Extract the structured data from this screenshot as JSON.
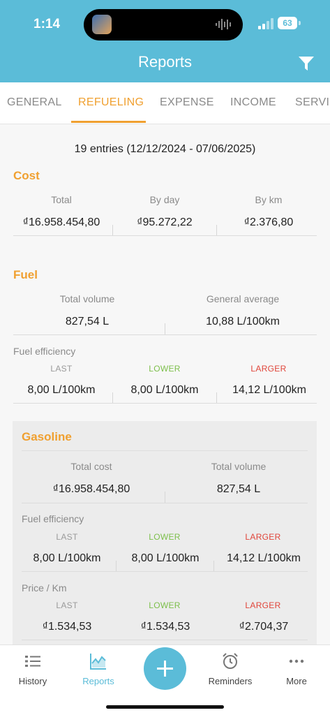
{
  "status_bar": {
    "time": "1:14",
    "battery": "63"
  },
  "header": {
    "title": "Reports"
  },
  "tabs": [
    {
      "label": "GENERAL"
    },
    {
      "label": "REFUELING"
    },
    {
      "label": "EXPENSE"
    },
    {
      "label": "INCOME"
    },
    {
      "label": "SERVIC"
    }
  ],
  "summary": {
    "entries": "19 entries (12/12/2024 - 07/06/2025)"
  },
  "cost": {
    "title": "Cost",
    "total_label": "Total",
    "total_value": "₫16.958.454,80",
    "by_day_label": "By day",
    "by_day_value": "₫95.272,22",
    "by_km_label": "By km",
    "by_km_value": "₫2.376,80"
  },
  "fuel": {
    "title": "Fuel",
    "total_volume_label": "Total volume",
    "total_volume_value": "827,54 L",
    "general_average_label": "General average",
    "general_average_value": "10,88 L/100km",
    "efficiency_title": "Fuel efficiency",
    "last_label": "LAST",
    "last_value": "8,00 L/100km",
    "lower_label": "LOWER",
    "lower_value": "8,00 L/100km",
    "larger_label": "LARGER",
    "larger_value": "14,12 L/100km"
  },
  "gasoline": {
    "title": "Gasoline",
    "total_cost_label": "Total cost",
    "total_cost_value": "₫16.958.454,80",
    "total_volume_label": "Total volume",
    "total_volume_value": "827,54 L",
    "efficiency_title": "Fuel efficiency",
    "eff_last_label": "LAST",
    "eff_last_value": "8,00 L/100km",
    "eff_lower_label": "LOWER",
    "eff_lower_value": "8,00 L/100km",
    "eff_larger_label": "LARGER",
    "eff_larger_value": "14,12 L/100km",
    "price_title": "Price / Km",
    "price_last_label": "LAST",
    "price_last_value": "₫1.534,53",
    "price_lower_label": "LOWER",
    "price_lower_value": "₫1.534,53",
    "price_larger_label": "LARGER",
    "price_larger_value": "₫2.704,37"
  },
  "bottom_nav": {
    "history": "History",
    "reports": "Reports",
    "reminders": "Reminders",
    "more": "More"
  },
  "colors": {
    "primary": "#5bbcd8",
    "accent": "#f0a030",
    "lower": "#7cbf4a",
    "larger": "#e0453a"
  }
}
